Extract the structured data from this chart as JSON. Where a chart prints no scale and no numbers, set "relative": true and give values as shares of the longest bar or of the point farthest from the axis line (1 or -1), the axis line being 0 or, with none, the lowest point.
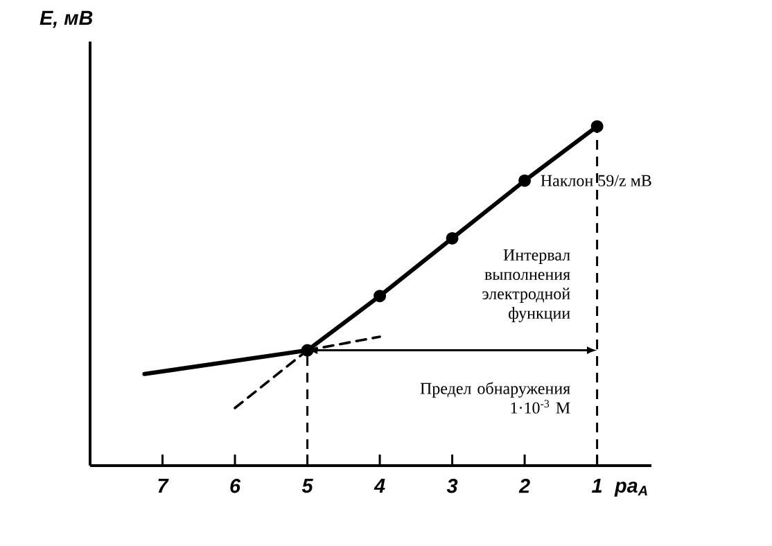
{
  "chart_data": {
    "type": "line",
    "relative": true,
    "xlabel": "pa$_{A}$",
    "ylabel": "E, мВ",
    "xlim": [
      8,
      0.25
    ],
    "xticks": [
      7,
      6,
      5,
      4,
      3,
      2,
      1
    ],
    "tick_labels": "x",
    "series": [
      {
        "x": [
          7.25,
          5
        ],
        "values": [
          0.27,
          0.34
        ],
        "color": "#000000"
      },
      {
        "x": [
          5,
          4,
          3,
          2,
          1
        ],
        "values": [
          0.34,
          0.5,
          0.67,
          0.84,
          1.0
        ],
        "color": "#000000",
        "marker": "circle"
      },
      {
        "x": [
          6,
          5
        ],
        "values": [
          0.17,
          0.34
        ],
        "color": "#000000",
        "marker": "none",
        "line_style": "dashed"
      },
      {
        "x": [
          5,
          4
        ],
        "values": [
          0.34,
          0.38
        ],
        "color": "#000000",
        "marker": "none",
        "line_style": "dashed"
      }
    ],
    "ref_lines": [
      {
        "axis": "x",
        "value": 5,
        "line_style": "dashed"
      },
      {
        "axis": "x",
        "value": 1,
        "line_style": "dashed"
      }
    ],
    "annotations": [
      {
        "text": "Наклон 59/z мВ",
        "x": 2,
        "y": 0.84
      },
      "Интервал выполнения электродной функции",
      "Предел обнаружения 1·10$^{-3}$ М"
    ]
  }
}
